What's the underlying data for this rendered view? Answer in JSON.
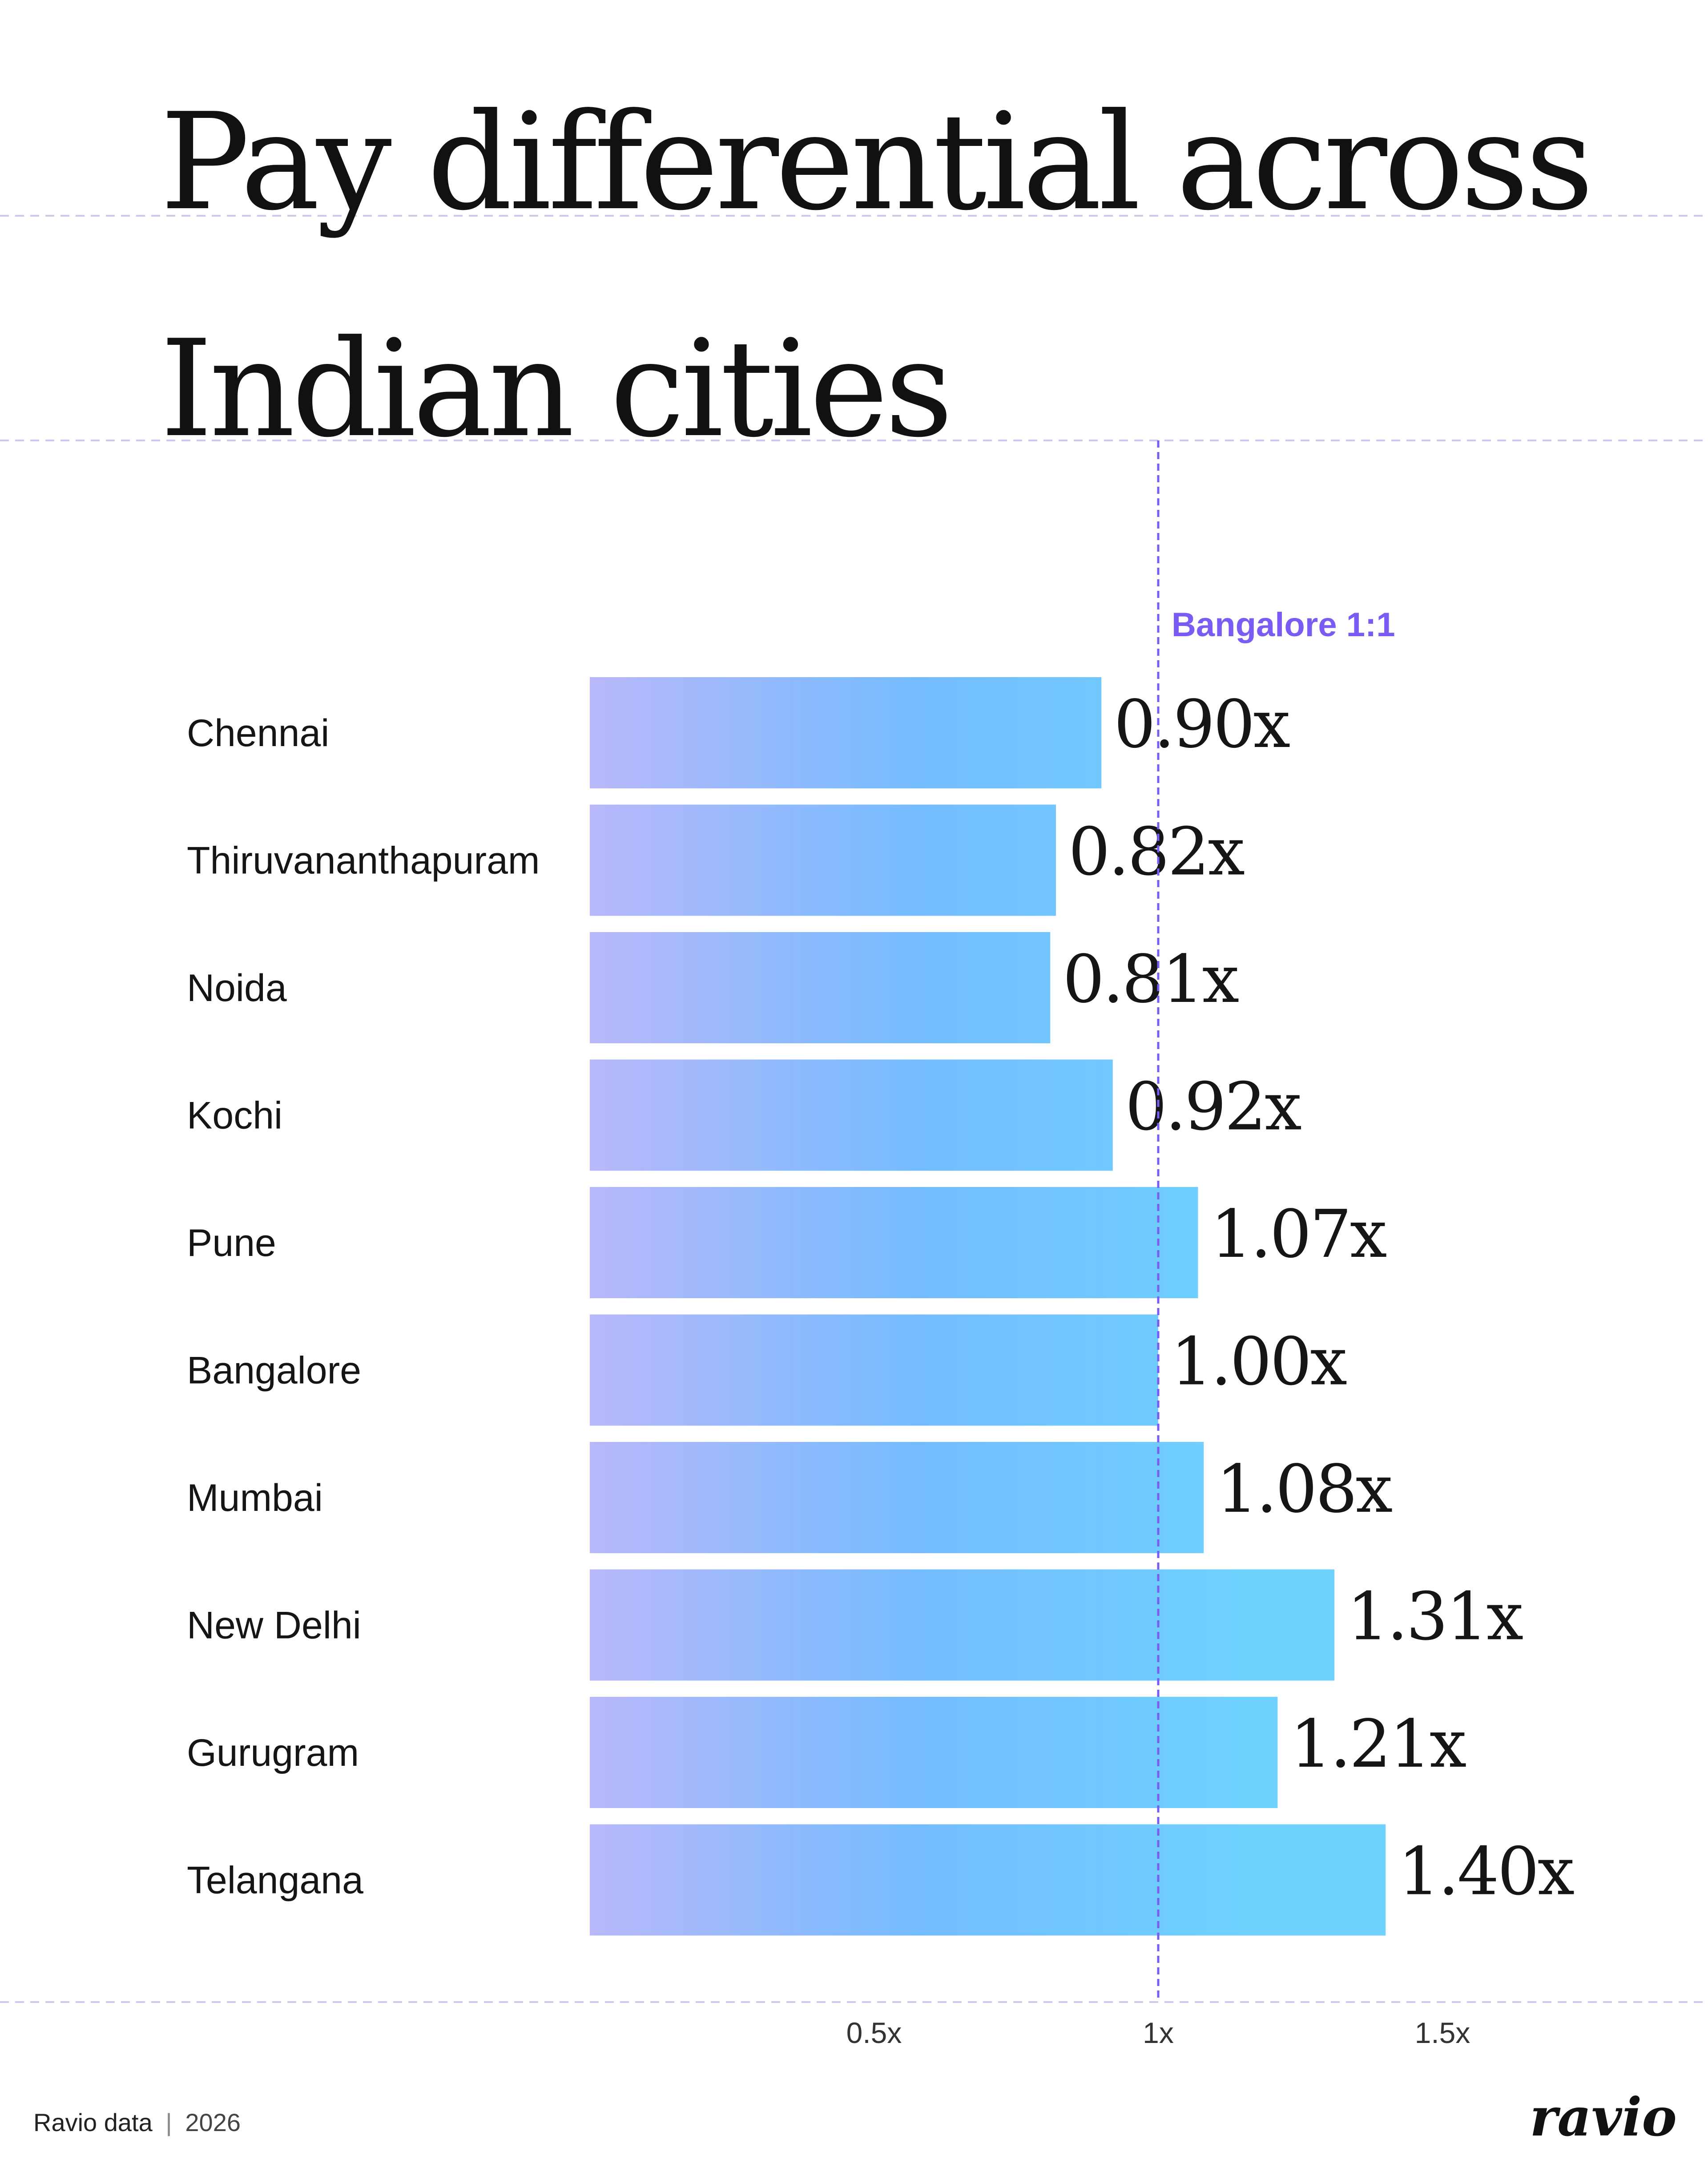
{
  "chart_data": {
    "type": "bar",
    "orientation": "horizontal",
    "title_lines": [
      "Pay differential across",
      "Indian cities"
    ],
    "categories": [
      "Chennai",
      "Thiruvananthapuram",
      "Noida",
      "Kochi",
      "Pune",
      "Bangalore",
      "Mumbai",
      "New Delhi",
      "Gurugram",
      "Telangana"
    ],
    "values": [
      0.9,
      0.82,
      0.81,
      0.92,
      1.07,
      1.0,
      1.08,
      1.31,
      1.21,
      1.4
    ],
    "value_labels": [
      "0.90x",
      "0.82x",
      "0.81x",
      "0.92x",
      "1.07x",
      "1.00x",
      "1.08x",
      "1.31x",
      "1.21x",
      "1.40x"
    ],
    "x_ticks": [
      {
        "value": 0.5,
        "label": "0.5x"
      },
      {
        "value": 1,
        "label": "1x"
      },
      {
        "value": 1.5,
        "label": "1.5x"
      }
    ],
    "xlim": [
      0,
      1.9
    ],
    "reference_line": {
      "value": 1,
      "label": "Bangalore 1:1",
      "color": "#7a5cf5"
    },
    "grid": false,
    "legend": "none",
    "bar_gradient": [
      "#b8b8fa",
      "#74bcff",
      "#6fd2ff"
    ],
    "guide_color": "#cfc8ee"
  },
  "footer": {
    "source": "Ravio data",
    "separator": "|",
    "year": "2026",
    "brand": "ravio"
  }
}
